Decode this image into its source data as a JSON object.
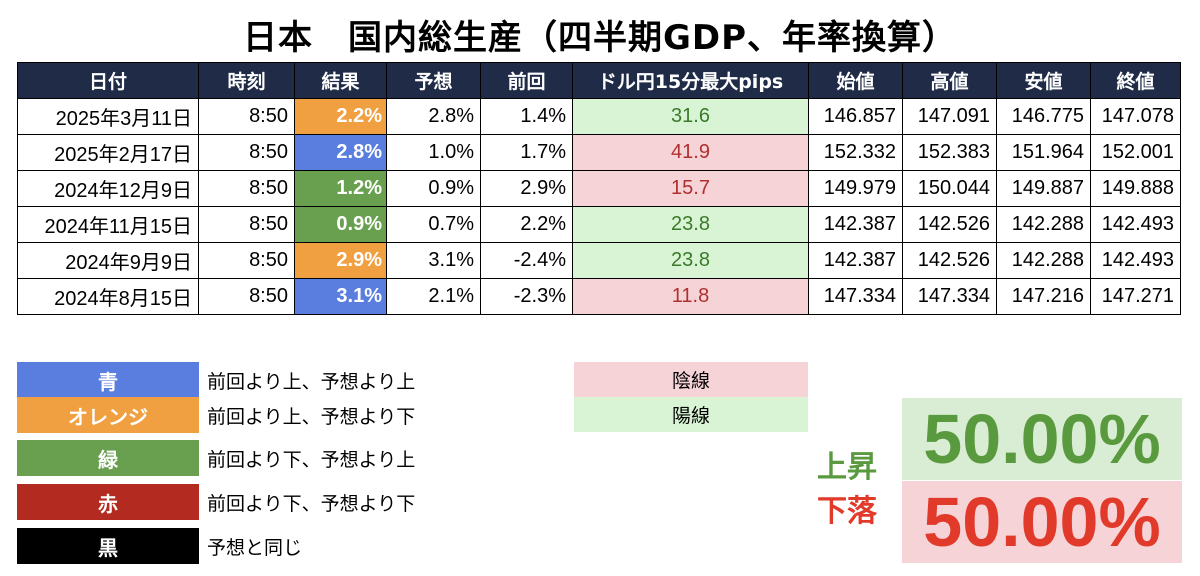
{
  "title": "日本　国内総生産（四半期GDP、年率換算）",
  "table": {
    "headers": [
      "日付",
      "時刻",
      "結果",
      "予想",
      "前回",
      "ドル円15分最大pips",
      "始値",
      "高値",
      "安値",
      "終値"
    ],
    "rows": [
      {
        "date": "2025年3月11日",
        "time": "8:50",
        "result": "2.2%",
        "result_color": "orange",
        "forecast": "2.8%",
        "previous": "1.4%",
        "pips": "31.6",
        "pips_dir": "up",
        "open": "146.857",
        "high": "147.091",
        "low": "146.775",
        "close": "147.078"
      },
      {
        "date": "2025年2月17日",
        "time": "8:50",
        "result": "2.8%",
        "result_color": "blue",
        "forecast": "1.0%",
        "previous": "1.7%",
        "pips": "41.9",
        "pips_dir": "down",
        "open": "152.332",
        "high": "152.383",
        "low": "151.964",
        "close": "152.001"
      },
      {
        "date": "2024年12月9日",
        "time": "8:50",
        "result": "1.2%",
        "result_color": "green",
        "forecast": "0.9%",
        "previous": "2.9%",
        "pips": "15.7",
        "pips_dir": "down",
        "open": "149.979",
        "high": "150.044",
        "low": "149.887",
        "close": "149.888"
      },
      {
        "date": "2024年11月15日",
        "time": "8:50",
        "result": "0.9%",
        "result_color": "green",
        "forecast": "0.7%",
        "previous": "2.2%",
        "pips": "23.8",
        "pips_dir": "up",
        "open": "142.387",
        "high": "142.526",
        "low": "142.288",
        "close": "142.493"
      },
      {
        "date": "2024年9月9日",
        "time": "8:50",
        "result": "2.9%",
        "result_color": "orange",
        "forecast": "3.1%",
        "previous": "-2.4%",
        "pips": "23.8",
        "pips_dir": "up",
        "open": "142.387",
        "high": "142.526",
        "low": "142.288",
        "close": "142.493"
      },
      {
        "date": "2024年8月15日",
        "time": "8:50",
        "result": "3.1%",
        "result_color": "blue",
        "forecast": "2.1%",
        "previous": "-2.3%",
        "pips": "11.8",
        "pips_dir": "down",
        "open": "147.334",
        "high": "147.334",
        "low": "147.216",
        "close": "147.271"
      }
    ]
  },
  "legend": [
    {
      "label": "青",
      "color": "#5a7ee0",
      "desc": "前回より上、予想より上"
    },
    {
      "label": "オレンジ",
      "color": "#f0a040",
      "desc": "前回より上、予想より下"
    },
    {
      "label": "緑",
      "color": "#69a050",
      "desc": "前回より下、予想より上"
    },
    {
      "label": "赤",
      "color": "#b32a20",
      "desc": "前回より下、予想より下"
    },
    {
      "label": "黒",
      "color": "#000000",
      "desc": "予想と同じ"
    }
  ],
  "candles": {
    "bearish": "陰線",
    "bullish": "陽線"
  },
  "stats": {
    "up_label": "上昇",
    "up_value": "50.00%",
    "up_color": "#5a9a3e",
    "down_label": "下落",
    "down_value": "50.00%",
    "down_color": "#e23a2a"
  }
}
